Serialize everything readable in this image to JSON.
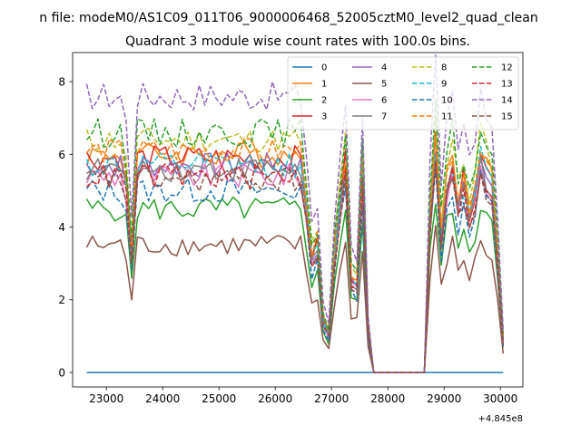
{
  "figure": {
    "suptitle": "n file: modeM0/AS1C09_011T06_9000006468_52005cztM0_level2_quad_clean",
    "title": "Quadrant 3 module wise count rates with 100.0s bins.",
    "offset_label": "+4.845e8"
  },
  "chart_data": {
    "type": "line",
    "title": "Quadrant 3 module wise count rates with 100.0s bins.",
    "xlabel": "",
    "ylabel": "",
    "x_offset": 484500000,
    "xlim": [
      22400,
      30400
    ],
    "ylim": [
      -0.4,
      8.8
    ],
    "xticks": [
      23000,
      24000,
      25000,
      26000,
      27000,
      28000,
      29000,
      30000
    ],
    "xtick_labels": [
      "23000",
      "24000",
      "25000",
      "26000",
      "27000",
      "28000",
      "29000",
      "30000"
    ],
    "yticks": [
      0,
      2,
      4,
      6,
      8
    ],
    "ytick_labels": [
      "0",
      "2",
      "4",
      "6",
      "8"
    ],
    "legend_position": "top-right",
    "legend_columns": 4,
    "x_start": 22650,
    "x_step": 100,
    "gap_from": 27800,
    "gap_to": 28600,
    "series": [
      {
        "name": "0",
        "color": "#1f77b4",
        "dash": "solid",
        "base": 0,
        "amp": 0,
        "seed": 0
      },
      {
        "name": "1",
        "color": "#ff7f0e",
        "dash": "solid",
        "base": 6.0,
        "amp": 0.35,
        "seed": 1
      },
      {
        "name": "2",
        "color": "#2ca02c",
        "dash": "solid",
        "base": 4.5,
        "amp": 0.35,
        "seed": 2
      },
      {
        "name": "3",
        "color": "#d62728",
        "dash": "solid",
        "base": 5.9,
        "amp": 0.35,
        "seed": 3
      },
      {
        "name": "4",
        "color": "#9467bd",
        "dash": "solid",
        "base": 5.7,
        "amp": 0.35,
        "seed": 4
      },
      {
        "name": "5",
        "color": "#8c564b",
        "dash": "solid",
        "base": 3.5,
        "amp": 0.3,
        "seed": 5
      },
      {
        "name": "6",
        "color": "#e377c2",
        "dash": "solid",
        "base": 5.4,
        "amp": 0.35,
        "seed": 6
      },
      {
        "name": "7",
        "color": "#7f7f7f",
        "dash": "solid",
        "base": 5.6,
        "amp": 0.35,
        "seed": 7
      },
      {
        "name": "8",
        "color": "#bcbd22",
        "dash": "dashed",
        "base": 6.4,
        "amp": 0.35,
        "seed": 8
      },
      {
        "name": "9",
        "color": "#17becf",
        "dash": "dashed",
        "base": 5.7,
        "amp": 0.35,
        "seed": 9
      },
      {
        "name": "10",
        "color": "#1f77b4",
        "dash": "dashed",
        "base": 5.0,
        "amp": 0.35,
        "seed": 10
      },
      {
        "name": "11",
        "color": "#ff7f0e",
        "dash": "dashed",
        "base": 6.1,
        "amp": 0.35,
        "seed": 11
      },
      {
        "name": "12",
        "color": "#2ca02c",
        "dash": "dashed",
        "base": 6.6,
        "amp": 0.4,
        "seed": 12
      },
      {
        "name": "13",
        "color": "#d62728",
        "dash": "dashed",
        "base": 5.4,
        "amp": 0.35,
        "seed": 13
      },
      {
        "name": "14",
        "color": "#9467bd",
        "dash": "dashed",
        "base": 7.6,
        "amp": 0.4,
        "seed": 14
      },
      {
        "name": "15",
        "color": "#8c564b",
        "dash": "dashed",
        "base": 5.3,
        "amp": 0.35,
        "seed": 15
      }
    ]
  }
}
